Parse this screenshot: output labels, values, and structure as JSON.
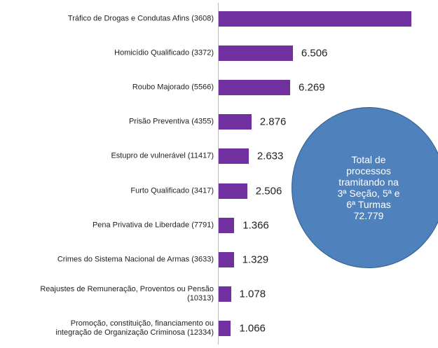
{
  "chart_data": {
    "type": "barh",
    "categories": [
      "Tráfico de Drogas e Condutas Afins (3608)",
      "Homicídio Qualificado (3372)",
      "Roubo Majorado (5566)",
      "Prisão Preventiva (4355)",
      "Estupro de vulnerável (11417)",
      "Furto Qualificado (3417)",
      "Pena Privativa de Liberdade (7791)",
      "Crimes do Sistema Nacional de Armas (3633)",
      "Reajustes de Remuneração, Proventos ou Pensão\n(10313)",
      "Promoção, constituição, financiamento ou\nintegração de Organização Criminosa (12334)"
    ],
    "values": [
      16900,
      6506,
      6269,
      2876,
      2633,
      2506,
      1366,
      1329,
      1078,
      1066
    ],
    "value_labels": [
      null,
      "6.506",
      "6.269",
      "2.876",
      "2.633",
      "2.506",
      "1.366",
      "1.329",
      "1.078",
      "1.066"
    ],
    "color": "#7030a0",
    "xlim": [
      0,
      17700
    ],
    "annotation": {
      "lines": [
        "Total de",
        "processos",
        "tramitando na",
        "3ª Seção, 5ª e",
        "6ª Turmas",
        "72.779"
      ],
      "color": "#4f81bd"
    }
  }
}
